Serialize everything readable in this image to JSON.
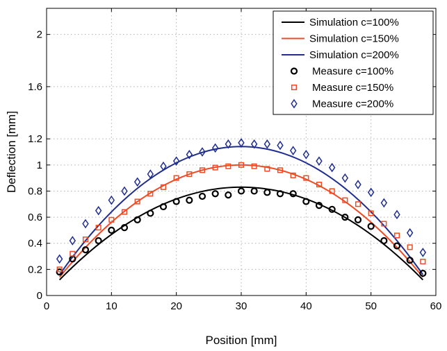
{
  "chart_data": {
    "type": "line",
    "title": "",
    "xlabel": "Position [mm]",
    "ylabel": "Deflection [mm]",
    "xlim": [
      0,
      60
    ],
    "ylim": [
      0,
      2.2
    ],
    "xticks": [
      0,
      10,
      20,
      30,
      40,
      50,
      60
    ],
    "yticks": [
      0,
      0.2,
      0.4,
      0.6,
      0.8,
      1,
      1.2,
      1.6,
      2
    ],
    "ytick_labels": [
      "0",
      "0.2",
      "0.4",
      "0.6",
      "0.8",
      "1",
      "1.2",
      "1.6",
      "2"
    ],
    "grid": true,
    "legend_position": "top-right",
    "series": [
      {
        "name": "Simulation c=100%",
        "kind": "line",
        "color": "#000000",
        "x": [
          2,
          30,
          58
        ],
        "y": [
          0.12,
          0.83,
          0.12
        ]
      },
      {
        "name": "Simulation c=150%",
        "kind": "line",
        "color": "#f04a24",
        "x": [
          2,
          30,
          58
        ],
        "y": [
          0.14,
          1.0,
          0.14
        ]
      },
      {
        "name": "Simulation c=200%",
        "kind": "line",
        "color": "#1f2d8f",
        "x": [
          2,
          29,
          58
        ],
        "y": [
          0.16,
          1.14,
          0.16
        ]
      },
      {
        "name": "Measure c=100%",
        "kind": "marker",
        "marker": "circle",
        "color": "#000000",
        "x": [
          2,
          4,
          6,
          8,
          10,
          12,
          14,
          16,
          18,
          20,
          22,
          24,
          26,
          28,
          30,
          32,
          34,
          36,
          38,
          40,
          42,
          44,
          46,
          48,
          50,
          52,
          54,
          56,
          58
        ],
        "y": [
          0.18,
          0.28,
          0.35,
          0.42,
          0.5,
          0.52,
          0.58,
          0.63,
          0.68,
          0.72,
          0.73,
          0.76,
          0.78,
          0.77,
          0.8,
          0.8,
          0.79,
          0.78,
          0.78,
          0.72,
          0.69,
          0.66,
          0.6,
          0.58,
          0.53,
          0.42,
          0.38,
          0.27,
          0.17
        ]
      },
      {
        "name": "Measure c=150%",
        "kind": "marker",
        "marker": "square",
        "color": "#f04a24",
        "x": [
          2,
          4,
          6,
          8,
          10,
          12,
          14,
          16,
          18,
          20,
          22,
          24,
          26,
          28,
          30,
          32,
          34,
          36,
          38,
          40,
          42,
          44,
          46,
          48,
          50,
          52,
          54,
          56,
          58
        ],
        "y": [
          0.2,
          0.32,
          0.43,
          0.52,
          0.58,
          0.64,
          0.72,
          0.78,
          0.83,
          0.9,
          0.93,
          0.96,
          0.98,
          0.99,
          1.0,
          0.99,
          0.97,
          0.96,
          0.92,
          0.9,
          0.85,
          0.8,
          0.73,
          0.7,
          0.63,
          0.55,
          0.46,
          0.37,
          0.26
        ]
      },
      {
        "name": "Measure c=200%",
        "kind": "marker",
        "marker": "diamond",
        "color": "#1f2d8f",
        "x": [
          2,
          4,
          6,
          8,
          10,
          12,
          14,
          16,
          18,
          20,
          22,
          24,
          26,
          28,
          30,
          32,
          34,
          36,
          38,
          40,
          42,
          44,
          46,
          48,
          50,
          52,
          54,
          56,
          58
        ],
        "y": [
          0.28,
          0.42,
          0.55,
          0.65,
          0.73,
          0.8,
          0.87,
          0.93,
          0.99,
          1.03,
          1.08,
          1.1,
          1.13,
          1.16,
          1.17,
          1.16,
          1.16,
          1.15,
          1.11,
          1.08,
          1.03,
          0.98,
          0.9,
          0.85,
          0.79,
          0.71,
          0.62,
          0.48,
          0.33
        ]
      }
    ]
  }
}
